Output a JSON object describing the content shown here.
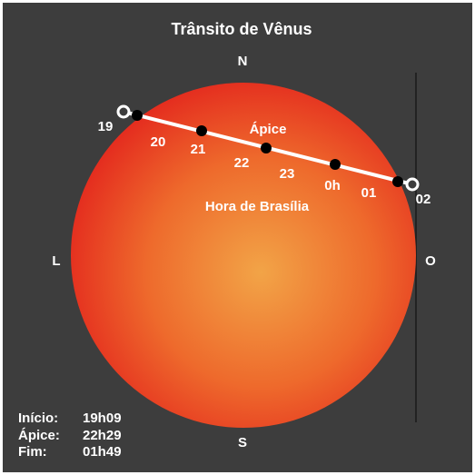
{
  "title": "Trânsito de Vênus",
  "directions": {
    "north": "N",
    "south": "S",
    "east": "L",
    "west": "O"
  },
  "hours": [
    "19",
    "20",
    "21",
    "22",
    "23",
    "0h",
    "01",
    "02"
  ],
  "apex_label": "Ápice",
  "timezone_label": "Hora de Brasília",
  "info": [
    [
      "Início:",
      "19h09"
    ],
    [
      "Ápice:",
      "22h29"
    ],
    [
      "Fim:",
      "01h49"
    ]
  ]
}
